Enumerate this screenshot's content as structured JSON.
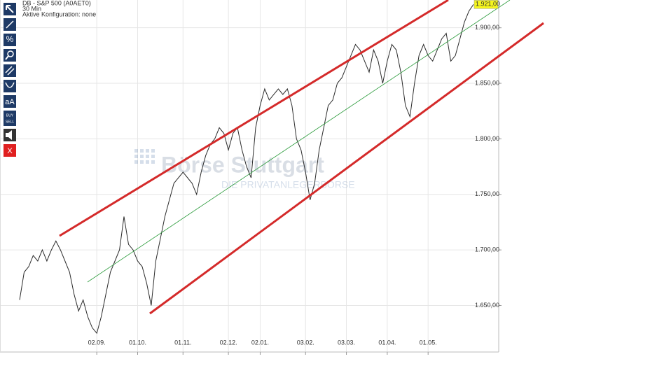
{
  "chart_data": {
    "type": "line",
    "title": "DB - S&P 500 (A0AET0)",
    "subtitle": "30 Min",
    "config_label": "Aktive Konfiguration: none",
    "watermark": "Börse Stuttgart",
    "watermark_sub": "DIE PRIVATANLEGERBÖRSE",
    "toolbar": [
      "aA",
      "BUY",
      "SELL",
      "X"
    ],
    "last_price_label": "1.921,00",
    "color": "#2b2b2b",
    "categories": [
      null,
      null,
      null,
      null,
      null,
      null,
      null,
      null,
      null,
      null,
      null,
      null,
      null,
      null,
      null,
      null,
      null,
      "02.09.",
      null,
      null,
      null,
      null,
      null,
      null,
      null,
      null,
      "01.10.",
      null,
      null,
      null,
      null,
      null,
      null,
      null,
      null,
      null,
      "01.11.",
      null,
      null,
      null,
      null,
      null,
      null,
      null,
      null,
      null,
      "02.12.",
      null,
      null,
      null,
      null,
      null,
      null,
      "02.01.",
      null,
      null,
      null,
      null,
      null,
      null,
      null,
      null,
      null,
      "03.02.",
      null,
      null,
      null,
      null,
      null,
      null,
      null,
      null,
      "03.03.",
      null,
      null,
      null,
      null,
      null,
      null,
      null,
      null,
      "01.04.",
      null,
      null,
      null,
      null,
      null,
      null,
      null,
      null,
      "01.05.",
      null,
      null,
      null,
      null,
      null,
      null,
      null,
      null,
      null,
      null
    ],
    "values": [
      1655,
      1680,
      1685,
      1695,
      1690,
      1700,
      1690,
      1700,
      1708,
      1700,
      1690,
      1680,
      1660,
      1645,
      1655,
      1640,
      1630,
      1625,
      1640,
      1660,
      1680,
      1690,
      1700,
      1730,
      1705,
      1700,
      1690,
      1685,
      1670,
      1650,
      1690,
      1710,
      1730,
      1745,
      1760,
      1765,
      1770,
      1765,
      1760,
      1750,
      1770,
      1785,
      1795,
      1800,
      1810,
      1805,
      1790,
      1805,
      1810,
      1790,
      1775,
      1765,
      1810,
      1830,
      1845,
      1835,
      1840,
      1845,
      1840,
      1845,
      1830,
      1800,
      1790,
      1770,
      1745,
      1760,
      1790,
      1810,
      1830,
      1835,
      1850,
      1855,
      1865,
      1875,
      1885,
      1880,
      1870,
      1860,
      1880,
      1870,
      1850,
      1870,
      1885,
      1880,
      1860,
      1830,
      1820,
      1850,
      1875,
      1885,
      1875,
      1870,
      1880,
      1890,
      1895,
      1870,
      1875,
      1890,
      1905,
      1915,
      1921
    ],
    "ylim": [
      1610,
      1925
    ],
    "yticks": [
      {
        "value": 1650,
        "label": "1.650,00"
      },
      {
        "value": 1700,
        "label": "1.700,00"
      },
      {
        "value": 1750,
        "label": "1.750,00"
      },
      {
        "value": 1800,
        "label": "1.800,00"
      },
      {
        "value": 1850,
        "label": "1.850,00"
      },
      {
        "value": 1900,
        "label": "1.900,00"
      }
    ],
    "grid": true
  }
}
